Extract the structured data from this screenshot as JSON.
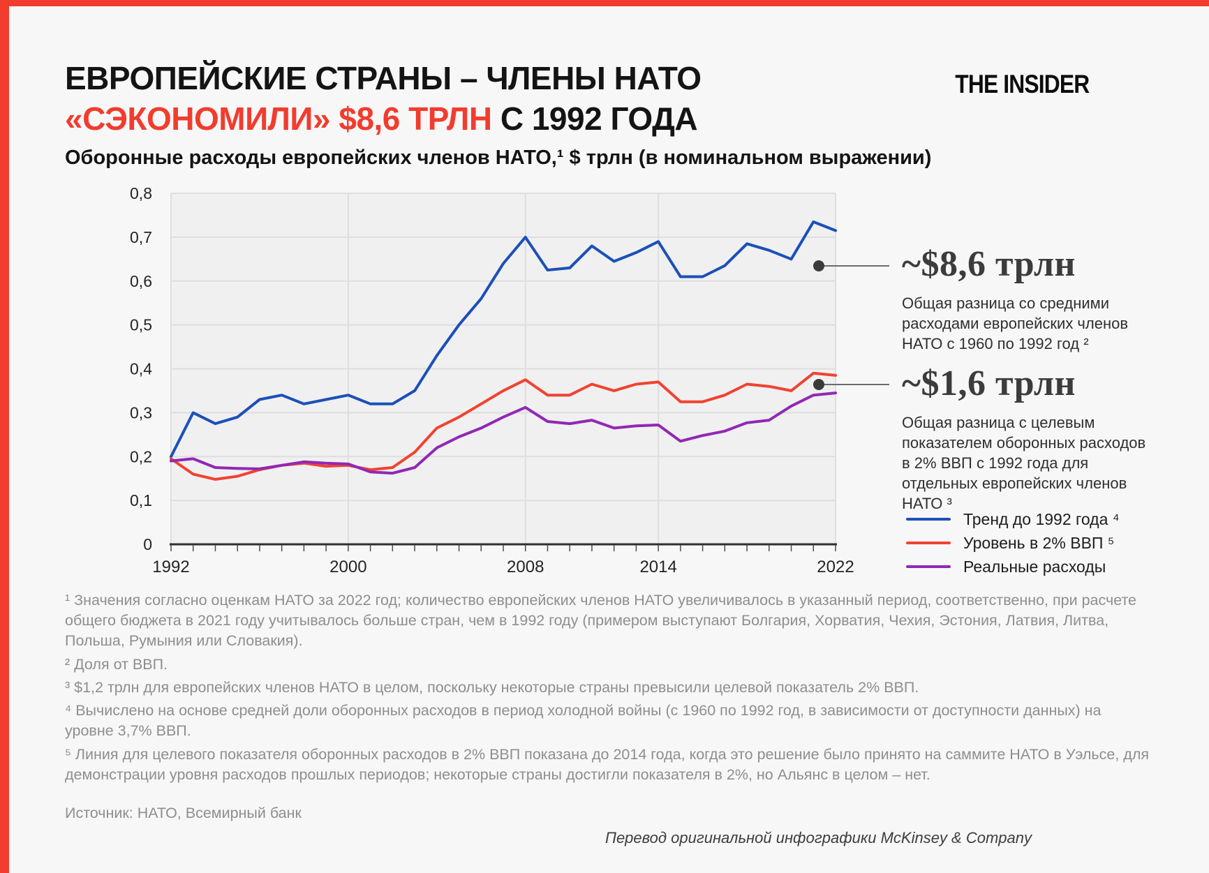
{
  "page": {
    "accent_color": "#f23c2d",
    "background_color": "#f7f7f8",
    "plot_background_color": "#f0f0f1"
  },
  "header": {
    "title_line1": "ЕВРОПЕЙСКИЕ СТРАНЫ – ЧЛЕНЫ НАТО",
    "title_line2_accent": "«СЭКОНОМИЛИ» $8,6 ТРЛН",
    "title_line2_rest": " С 1992 ГОДА",
    "logo": "THE INSIDER",
    "subtitle": "Оборонные расходы европейских членов НАТО,¹ $ трлн (в номинальном выражении)"
  },
  "chart_data": {
    "type": "line",
    "title": "Оборонные расходы европейских членов НАТО, $ трлн (в номинальном выражении)",
    "xlabel": "",
    "ylabel": "$ трлн",
    "ylim": [
      0,
      0.8
    ],
    "grid": true,
    "legend_position": "bottom-right",
    "x": [
      1992,
      1993,
      1994,
      1995,
      1996,
      1997,
      1998,
      1999,
      2000,
      2001,
      2002,
      2003,
      2004,
      2005,
      2006,
      2007,
      2008,
      2009,
      2010,
      2011,
      2012,
      2013,
      2014,
      2015,
      2016,
      2017,
      2018,
      2019,
      2020,
      2021,
      2022
    ],
    "series": [
      {
        "name": "Тренд до 1992 года ⁴",
        "color": "#1c50b8",
        "values": [
          0.2,
          0.3,
          0.275,
          0.29,
          0.33,
          0.34,
          0.32,
          0.33,
          0.34,
          0.32,
          0.32,
          0.35,
          0.43,
          0.5,
          0.56,
          0.64,
          0.7,
          0.625,
          0.63,
          0.68,
          0.645,
          0.665,
          0.69,
          0.61,
          0.61,
          0.635,
          0.685,
          0.67,
          0.65,
          0.735,
          0.715
        ]
      },
      {
        "name": "Уровень в 2% ВВП ⁵",
        "color": "#f04331",
        "values": [
          0.195,
          0.16,
          0.148,
          0.155,
          0.17,
          0.18,
          0.185,
          0.178,
          0.18,
          0.17,
          0.175,
          0.21,
          0.265,
          0.29,
          0.32,
          0.35,
          0.375,
          0.34,
          0.34,
          0.365,
          0.35,
          0.365,
          0.37,
          0.325,
          0.325,
          0.34,
          0.365,
          0.36,
          0.35,
          0.39,
          0.385
        ]
      },
      {
        "name": "Реальные расходы",
        "color": "#9128b4",
        "values": [
          0.19,
          0.195,
          0.175,
          0.173,
          0.172,
          0.18,
          0.188,
          0.185,
          0.183,
          0.165,
          0.162,
          0.175,
          0.22,
          0.245,
          0.265,
          0.29,
          0.312,
          0.28,
          0.275,
          0.283,
          0.265,
          0.27,
          0.272,
          0.235,
          0.248,
          0.258,
          0.277,
          0.283,
          0.315,
          0.34,
          0.345
        ]
      }
    ],
    "y_ticks": [
      {
        "value": 0,
        "label": "0"
      },
      {
        "value": 0.1,
        "label": "0,1"
      },
      {
        "value": 0.2,
        "label": "0,2"
      },
      {
        "value": 0.3,
        "label": "0,3"
      },
      {
        "value": 0.4,
        "label": "0,4"
      },
      {
        "value": 0.5,
        "label": "0,5"
      },
      {
        "value": 0.6,
        "label": "0,6"
      },
      {
        "value": 0.7,
        "label": "0,7"
      },
      {
        "value": 0.8,
        "label": "0,8"
      }
    ],
    "x_ticks": [
      {
        "value": 1992,
        "label": "1992"
      },
      {
        "value": 2000,
        "label": "2000"
      },
      {
        "value": 2008,
        "label": "2008"
      },
      {
        "value": 2014,
        "label": "2014"
      },
      {
        "value": 2022,
        "label": "2022"
      }
    ],
    "grid_years": [
      2000,
      2008,
      2014
    ]
  },
  "annotations": [
    {
      "value": "~$8,6 трлн",
      "description": "Общая разница со средними расходами европейских членов НАТО с 1960 по 1992 год ²"
    },
    {
      "value": "~$1,6 трлн",
      "description": "Общая разница  с целевым показателем оборонных расходов в 2% ВВП с 1992 года для отдельных европейских членов НАТО ³"
    }
  ],
  "footnotes": [
    "¹ Значения согласно оценкам НАТО за 2022 год; количество европейских членов НАТО увеличивалось в указанный период, соответственно, при расчете общего бюджета в 2021 году учитывалось больше стран, чем в 1992 году (примером выступают Болгария, Хорватия, Чехия, Эстония, Латвия, Литва, Польша, Румыния или Словакия).",
    "² Доля от ВВП.",
    "³ $1,2 трлн для европейских членов НАТО в целом, поскольку некоторые страны превысили целевой показатель 2% ВВП.",
    "⁴ Вычислено на основе средней доли оборонных расходов в период холодной войны (с 1960 по 1992 год, в зависимости от доступности данных) на уровне 3,7% ВВП.",
    "⁵ Линия для целевого показателя оборонных расходов в 2% ВВП показана до 2014 года, когда это решение было принято на саммите НАТО в Уэльсе, для демонстрации уровня расходов прошлых периодов; некоторые страны достигли показателя в 2%, но Альянс в целом – нет."
  ],
  "source": "Источник: НАТО, Всемирный банк",
  "credit": "Перевод оригинальной инфографики McKinsey & Company"
}
